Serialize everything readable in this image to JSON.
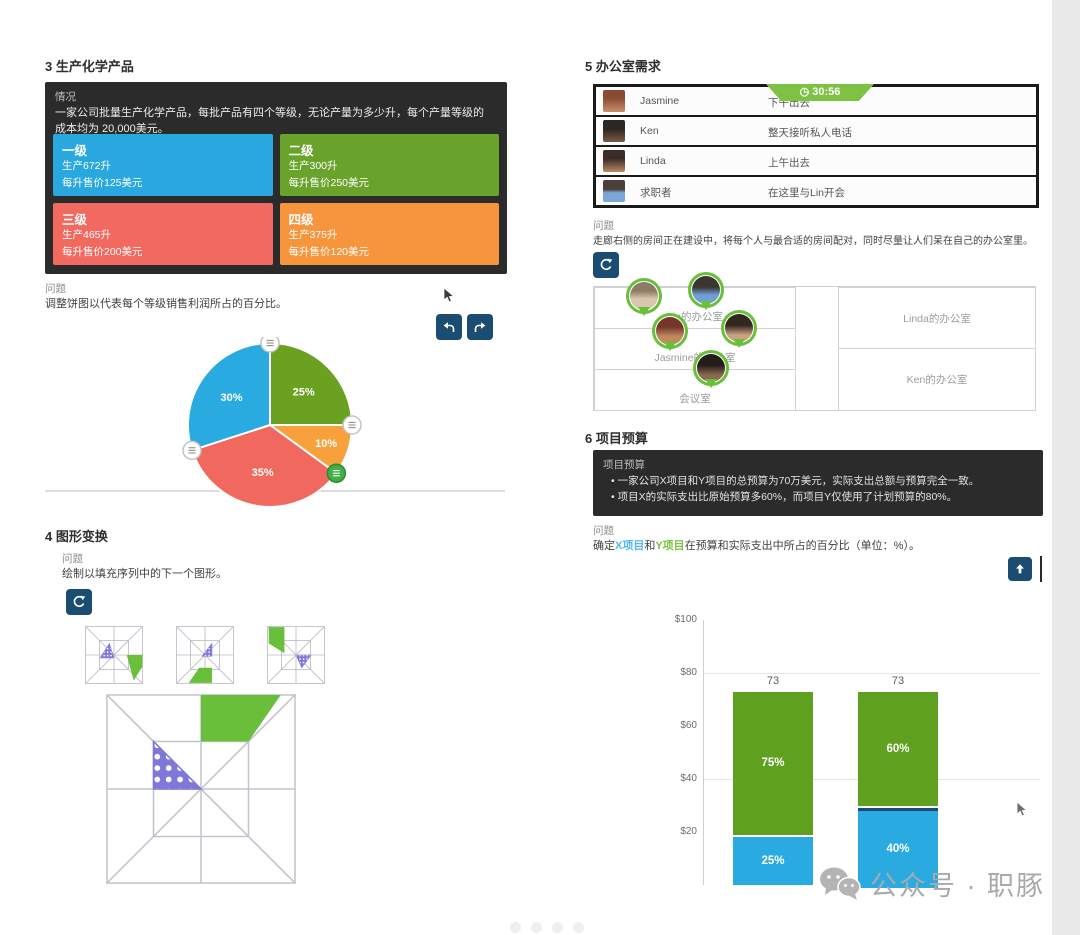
{
  "page": {
    "watermark": "公众号 · 职豚"
  },
  "colors": {
    "accent_navy": "#1b4d73",
    "timer_green": "#7dc242",
    "pin_green": "#6abf3a",
    "panel_dark": "#2b2b2b"
  },
  "section3": {
    "heading": "3 生产化学产品",
    "intro_label": "情况",
    "intro_text": "一家公司批量生产化学产品，每批产品有四个等级，无论产量为多少升，每个产量等级的成本均为 20,000美元。",
    "grades": [
      {
        "name": "一级",
        "line1": "生产672升",
        "line2": "每升售价125美元",
        "color": "#29a8e0"
      },
      {
        "name": "二级",
        "line1": "生产300升",
        "line2": "每升售价250美元",
        "color": "#6aa32b"
      },
      {
        "name": "三级",
        "line1": "生产465升",
        "line2": "每升售价200美元",
        "color": "#f2695f"
      },
      {
        "name": "四级",
        "line1": "生产375升",
        "line2": "每升售价120美元",
        "color": "#f7953c"
      }
    ],
    "question_label": "问题",
    "question": "调整饼图以代表每个等级销售利润所占的百分比。"
  },
  "section4": {
    "heading": "4 图形变换",
    "question_label": "问题",
    "question": "绘制以填充序列中的下一个图形。"
  },
  "section5": {
    "heading": "5 办公室需求",
    "timer": "30:56",
    "people": [
      {
        "name": "Jasmine",
        "note": "下午出去"
      },
      {
        "name": "Ken",
        "note": "整天接听私人电话"
      },
      {
        "name": "Linda",
        "note": "上午出去"
      },
      {
        "name": "求职者",
        "note": "在这里与Lin开会"
      }
    ],
    "question_label": "问题",
    "question": "走廊右侧的房间正在建设中，将每个人与最合适的房间配对，同时尽量让人们呆在自己的办公室里。",
    "rooms_left": [
      "Lin的办公室",
      "Jasmine的办公室",
      "会议室"
    ],
    "rooms_right": [
      "Linda的办公室",
      "Ken的办公室"
    ]
  },
  "section6": {
    "heading": "6 项目预算",
    "panel_title": "项目预算",
    "bullets": [
      "一家公司X项目和Y项目的总预算为70万美元，实际支出总额与预算完全一致。",
      "项目X的实际支出比原始预算多60%，而项目Y仅使用了计划预算的80%。"
    ],
    "question_label": "问题",
    "question_prefix": "确定",
    "question_x": "X项目",
    "question_mid": "和",
    "question_y": "Y项目",
    "question_suffix": "在预算和实际支出中所占的百分比（单位：%）。"
  },
  "chart_data": [
    {
      "id": "profit-pie",
      "type": "pie",
      "title": "",
      "start_at": "top",
      "clockwise": true,
      "segments": [
        {
          "display": "25%",
          "value": 25,
          "color": "#6aa121"
        },
        {
          "display": "10%",
          "value": 10,
          "color": "#f7a03c"
        },
        {
          "display": "35%",
          "value": 35,
          "color": "#f1695e"
        },
        {
          "display": "30%",
          "value": 30,
          "color": "#29abe2"
        }
      ],
      "handles_at_boundaries": true,
      "active_handle_boundary": 2,
      "legend": "none"
    },
    {
      "id": "budget-stacked-bar",
      "type": "bar",
      "stacked": true,
      "categories": [
        "",
        ""
      ],
      "totals": [
        73,
        73
      ],
      "total_labels": [
        "73",
        "73"
      ],
      "series": [
        {
          "name": "blue-lower",
          "color": "#29abe2",
          "percents": [
            25,
            40
          ],
          "labels": [
            "25%",
            "40%"
          ]
        },
        {
          "name": "green-upper",
          "color": "#5fa01f",
          "percents": [
            75,
            60
          ],
          "labels": [
            "75%",
            "60%"
          ]
        }
      ],
      "y_ticks": [
        "$100",
        "$80",
        "$60",
        "$40",
        "$20"
      ],
      "ylim": [
        0,
        100
      ],
      "gridlines_at": [
        80,
        40
      ],
      "active_segment_bar": 1,
      "legend": "none"
    }
  ]
}
